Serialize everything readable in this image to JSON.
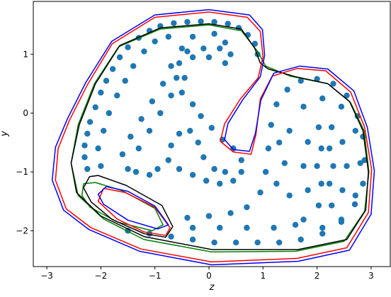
{
  "chart_data": {
    "type": "scatter",
    "xlabel": "z",
    "ylabel": "y",
    "xlim": [
      -3.25,
      3.355
    ],
    "ylim": [
      -2.61,
      1.9
    ],
    "xticks": [
      {
        "value": -3,
        "label": "−3"
      },
      {
        "value": -2,
        "label": "−2"
      },
      {
        "value": -1,
        "label": "−1"
      },
      0,
      1,
      2,
      3
    ],
    "yticks": [
      {
        "value": -2,
        "label": "−2"
      },
      {
        "value": -1,
        "label": "−1"
      },
      0,
      1
    ],
    "series": [
      {
        "type": "scatter",
        "color": "#1f77b4",
        "x": [
          -2.25,
          -2.3,
          -2.3,
          -2.25,
          -2.2,
          -2.1,
          -2.0,
          -1.9,
          -1.78,
          -1.65,
          -1.5,
          -1.3,
          -1.1,
          -0.9,
          -0.65,
          -0.4,
          -0.15,
          0.1,
          0.35,
          0.55,
          0.72,
          0.85,
          0.9,
          -2.0,
          -2.05,
          -1.95,
          -1.85,
          -1.7,
          -1.55,
          -1.4,
          -1.2,
          -1.0,
          -0.75,
          -1.5,
          -1.6,
          -1.45,
          -1.25,
          -1.05,
          -0.85,
          -0.7,
          -0.5,
          -0.3,
          -1.3,
          -1.1,
          -0.9,
          -0.7,
          -0.45,
          0.1,
          0.3,
          0.4,
          0.3,
          0.0,
          -0.3,
          -0.55,
          -0.6,
          -0.5,
          -0.3,
          -0.15,
          0.05,
          0.25,
          0.45,
          0.6,
          0.6,
          0.45,
          0.2,
          -0.05,
          -0.3,
          -0.55,
          -0.75,
          -0.7,
          -0.55,
          -0.35,
          -0.2,
          -0.1,
          0.1,
          0.3,
          0.2,
          -0.1,
          -0.4,
          2.3,
          2.23,
          2.08,
          2.0,
          2.08,
          2.23,
          2.55,
          2.47,
          2.27,
          2.03,
          1.83,
          1.75,
          1.83,
          2.03,
          2.27,
          2.47,
          2.8,
          2.71,
          2.45,
          2.1,
          1.75,
          1.49,
          1.4,
          1.49,
          1.75,
          2.1,
          2.45,
          2.71,
          -1.5,
          -1.1,
          -0.7,
          -0.3,
          0.1,
          0.5,
          0.9,
          1.3,
          1.7,
          2.1,
          2.45,
          2.7,
          2.85,
          2.88,
          2.85,
          2.75,
          2.55,
          2.3,
          2.0,
          1.7,
          1.45,
          1.25,
          1.15,
          1.1,
          1.05,
          0.95,
          0.7,
          0.4,
          0.0,
          -0.4,
          -0.3,
          0.2,
          0.7,
          1.2,
          1.6,
          1.25,
          1.3,
          -1.35,
          -1.1,
          -0.95
        ],
        "values": [
          -0.95,
          -0.75,
          -0.55,
          -0.35,
          -0.15,
          0.1,
          0.35,
          0.55,
          0.75,
          0.95,
          1.12,
          1.28,
          1.4,
          1.48,
          1.53,
          1.55,
          1.56,
          1.55,
          1.52,
          1.45,
          1.33,
          1.18,
          1.0,
          -0.9,
          -0.6,
          -0.3,
          0.0,
          0.3,
          0.55,
          0.8,
          1.05,
          1.22,
          1.3,
          -0.95,
          -0.7,
          -0.4,
          -0.1,
          0.2,
          0.5,
          0.8,
          1.1,
          1.3,
          -0.6,
          -0.3,
          0.0,
          0.3,
          0.6,
          1.35,
          1.2,
          1.0,
          0.85,
          0.95,
          0.95,
          0.85,
          0.6,
          0.35,
          0.15,
          -0.05,
          -0.25,
          -0.45,
          -0.6,
          -0.8,
          -1.0,
          -1.15,
          -1.2,
          -1.15,
          -1.05,
          -0.95,
          -0.8,
          -0.55,
          -0.35,
          -0.3,
          -0.5,
          -0.75,
          -0.95,
          -1.0,
          1.1,
          1.1,
          1.05,
          -0.9,
          -0.6,
          -0.6,
          -0.9,
          -1.2,
          -1.2,
          -0.9,
          -0.49,
          -0.24,
          -0.24,
          -0.49,
          -0.9,
          -1.31,
          -1.57,
          -1.57,
          -1.31,
          -0.85,
          -0.3,
          0.11,
          0.25,
          0.11,
          -0.3,
          -0.85,
          -1.4,
          -1.81,
          -1.95,
          -1.81,
          -1.4,
          -2.0,
          -2.05,
          -2.1,
          -2.15,
          -2.2,
          -2.2,
          -2.2,
          -2.2,
          -2.15,
          -2.05,
          -1.85,
          -1.55,
          -1.2,
          -0.8,
          -0.4,
          -0.05,
          0.3,
          0.5,
          0.58,
          0.55,
          0.4,
          0.15,
          -0.2,
          -0.6,
          -1.0,
          -1.35,
          -1.6,
          -1.7,
          -1.75,
          -1.78,
          -1.95,
          -1.95,
          -1.95,
          -1.95,
          -1.9,
          -1.2,
          -0.5,
          -1.0,
          -1.05,
          -0.95
        ]
      },
      {
        "type": "line",
        "color": "#008000",
        "x": [
          0,
          0.6,
          0.9,
          1.05,
          1.5,
          2.2,
          2.62,
          2.87,
          2.96,
          2.88,
          2.5,
          1.6,
          0.05,
          -1.2,
          -1.95,
          -2.42,
          -2.55,
          -2.42,
          -2.12,
          -1.67,
          -0.9,
          0,
          null,
          -2.32,
          -2.1,
          -1.6,
          -1.0,
          -0.85,
          -1.05,
          -1.7,
          -2.2,
          -2.35,
          -2.32
        ],
        "values": [
          1.5,
          1.4,
          1.05,
          0.8,
          0.63,
          0.5,
          0.18,
          -0.3,
          -1.0,
          -1.67,
          -2.18,
          -2.35,
          -2.36,
          -2.15,
          -1.8,
          -1.4,
          -0.85,
          -0.2,
          0.5,
          1.13,
          1.43,
          1.5,
          null,
          -1.2,
          -1.18,
          -1.32,
          -1.62,
          -1.9,
          -2.0,
          -1.85,
          -1.6,
          -1.4,
          -1.2
        ]
      },
      {
        "type": "line",
        "color": "#000000",
        "x": [
          0,
          0.6,
          0.85,
          0.95,
          1.1,
          1.6,
          2.2,
          2.6,
          2.85,
          2.95,
          2.9,
          2.55,
          1.65,
          0.05,
          -1.2,
          -2.0,
          -2.45,
          -2.55,
          -2.4,
          -2.1,
          -1.65,
          -0.9,
          0,
          null,
          -2.21,
          -2.05,
          -1.53,
          -0.87,
          -0.67,
          -0.8,
          -1.2,
          -1.79,
          -2.18,
          -2.32,
          -2.21
        ],
        "values": [
          1.52,
          1.43,
          1.1,
          0.85,
          0.75,
          0.62,
          0.5,
          0.2,
          -0.3,
          -1.0,
          -1.65,
          -2.15,
          -2.32,
          -2.32,
          -2.1,
          -1.75,
          -1.35,
          -0.85,
          -0.2,
          0.5,
          1.15,
          1.45,
          1.52,
          null,
          -1.08,
          -1.06,
          -1.23,
          -1.57,
          -1.93,
          -2.11,
          -2.05,
          -1.81,
          -1.51,
          -1.27,
          -1.08
        ]
      },
      {
        "type": "line",
        "color": "#ff0000",
        "x": [
          0,
          0.71,
          0.95,
          1.0,
          0.91,
          0.58,
          0.29,
          0.21,
          0.45,
          0.78,
          0.87,
          0.95,
          1.17,
          1.63,
          2.16,
          2.62,
          2.88,
          3.01,
          2.95,
          2.55,
          1.63,
          0.05,
          -1.26,
          -2.18,
          -2.64,
          -2.84,
          -2.79,
          -2.58,
          -2.25,
          -1.79,
          -1.0,
          0,
          null,
          -1.95,
          -1.55,
          -1.0,
          -0.72,
          -0.8,
          -1.2,
          -1.7,
          -2.05,
          -1.95
        ],
        "values": [
          1.72,
          1.63,
          1.39,
          0.96,
          0.6,
          0.24,
          -0.18,
          -0.48,
          -0.66,
          -0.7,
          -0.36,
          0.24,
          0.63,
          0.76,
          0.72,
          0.36,
          -0.24,
          -0.96,
          -1.69,
          -2.29,
          -2.47,
          -2.53,
          -2.31,
          -1.95,
          -1.63,
          -1.14,
          -0.6,
          -0.12,
          0.48,
          1.18,
          1.63,
          1.72,
          null,
          -1.28,
          -1.35,
          -1.6,
          -1.95,
          -2.08,
          -2.02,
          -1.8,
          -1.5,
          -1.28
        ]
      },
      {
        "type": "line",
        "color": "#0000ff",
        "x": [
          0,
          0.75,
          0.99,
          1.03,
          0.95,
          0.62,
          0.35,
          0.29,
          0.45,
          0.75,
          0.86,
          0.96,
          1.2,
          1.68,
          2.2,
          2.68,
          2.93,
          3.06,
          3.0,
          2.6,
          1.65,
          0.05,
          -1.28,
          -2.22,
          -2.69,
          -2.9,
          -2.84,
          -2.62,
          -2.28,
          -1.8,
          -1.0,
          0,
          null,
          -1.9,
          -1.5,
          -1.0,
          -0.75,
          -0.95,
          -1.5,
          -1.95,
          -2.05,
          -1.9
        ],
        "values": [
          1.76,
          1.67,
          1.42,
          0.98,
          0.62,
          0.22,
          -0.18,
          -0.45,
          -0.62,
          -0.65,
          -0.34,
          0.22,
          0.68,
          0.8,
          0.75,
          0.38,
          -0.24,
          -0.98,
          -1.72,
          -2.33,
          -2.52,
          -2.58,
          -2.35,
          -1.98,
          -1.65,
          -1.14,
          -0.58,
          -0.1,
          0.52,
          1.22,
          1.67,
          1.76,
          null,
          -1.25,
          -1.33,
          -1.58,
          -1.9,
          -1.97,
          -1.82,
          -1.55,
          -1.38,
          -1.25
        ]
      }
    ]
  }
}
